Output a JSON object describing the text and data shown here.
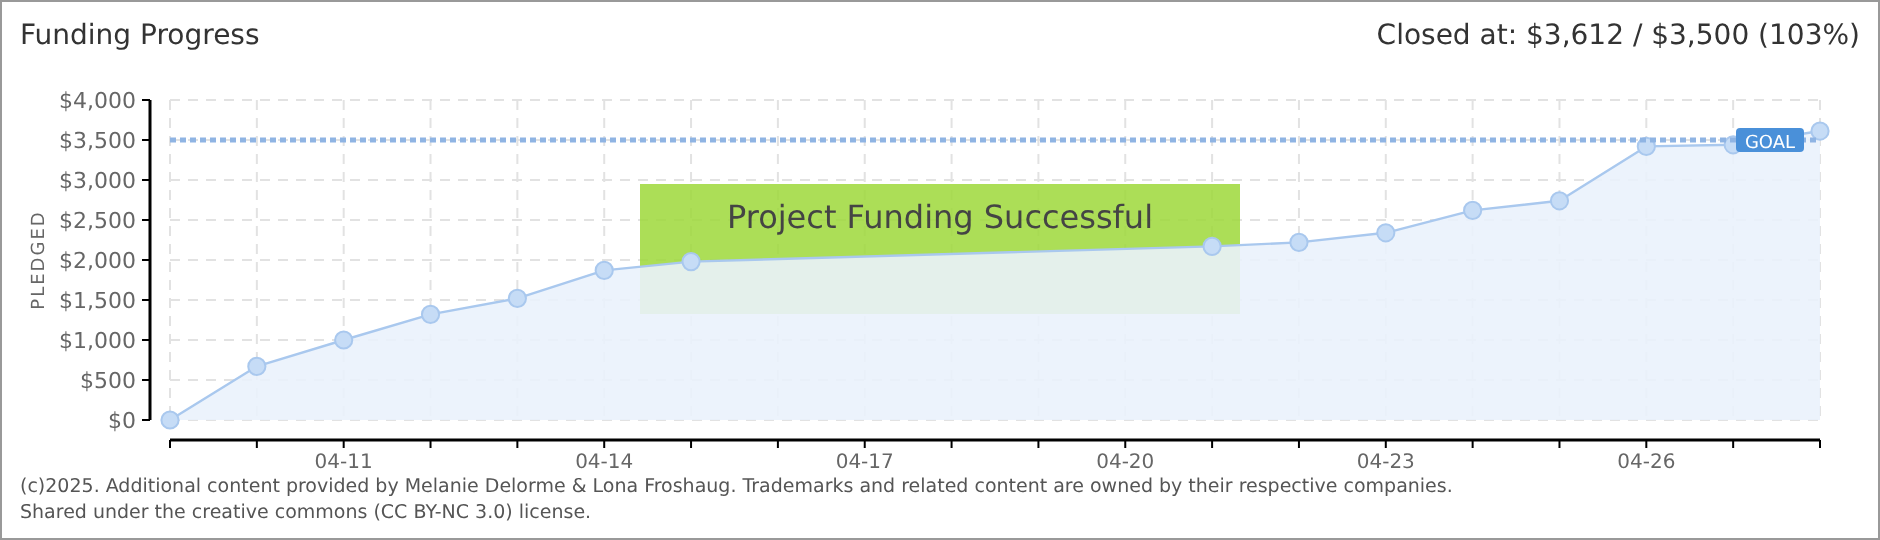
{
  "chart_data": {
    "type": "area",
    "title": "Funding Progress",
    "subtitle": "Closed at: $3,612 / $3,500 (103%)",
    "ylabel": "PLEDGED",
    "series": [
      {
        "color": "#a9c8ee",
        "x": [
          "--04-09",
          "--04-10",
          "--04-11",
          "--04-12",
          "--04-13",
          "--04-14",
          "--04-15",
          "--04-21",
          "--04-22",
          "--04-23",
          "--04-24",
          "--04-25",
          "--04-26",
          "--04-27",
          "--04-28"
        ],
        "values": [
          0,
          670,
          1000,
          1320,
          1520,
          1870,
          1980,
          2170,
          2220,
          2340,
          2620,
          2740,
          3420,
          3440,
          3612
        ]
      }
    ],
    "xlim": [
      "--04-09",
      "--04-28"
    ],
    "xticks": [
      {
        "value": "--04-09",
        "label": null
      },
      {
        "value": "--04-10",
        "label": null
      },
      {
        "value": "--04-11",
        "label": "04-11"
      },
      {
        "value": "--04-12",
        "label": null
      },
      {
        "value": "--04-13",
        "label": null
      },
      {
        "value": "--04-14",
        "label": "04-14"
      },
      {
        "value": "--04-15",
        "label": null
      },
      {
        "value": "--04-16",
        "label": null
      },
      {
        "value": "--04-17",
        "label": "04-17"
      },
      {
        "value": "--04-18",
        "label": null
      },
      {
        "value": "--04-19",
        "label": null
      },
      {
        "value": "--04-20",
        "label": "04-20"
      },
      {
        "value": "--04-21",
        "label": null
      },
      {
        "value": "--04-22",
        "label": null
      },
      {
        "value": "--04-23",
        "label": "04-23"
      },
      {
        "value": "--04-24",
        "label": null
      },
      {
        "value": "--04-25",
        "label": null
      },
      {
        "value": "--04-26",
        "label": "04-26"
      },
      {
        "value": "--04-27",
        "label": null
      },
      {
        "value": "--04-28",
        "label": null
      }
    ],
    "ylim": [
      0,
      4000
    ],
    "yticks": [
      {
        "value": 0,
        "label": "$0"
      },
      {
        "value": 500,
        "label": "$500"
      },
      {
        "value": 1000,
        "label": "$1,000"
      },
      {
        "value": 1500,
        "label": "$1,500"
      },
      {
        "value": 2000,
        "label": "$2,000"
      },
      {
        "value": 2500,
        "label": "$2,500"
      },
      {
        "value": 3000,
        "label": "$3,000"
      },
      {
        "value": 3500,
        "label": "$3,500"
      },
      {
        "value": 4000,
        "label": "$4,000"
      }
    ],
    "grid": true,
    "marker": "circle",
    "ref_lines": [
      {
        "axis": "y",
        "value": 3500,
        "label": "GOAL",
        "color": "#8fb4e3",
        "line_style": "dotted"
      }
    ],
    "annotations": [
      "Project Funding Successful",
      "(c)2025. Additional content provided by Melanie Delorme & Lona Froshaug. Trademarks and related content are owned by their respective companies.",
      "Shared under the creative commons (CC BY-NC 3.0) license."
    ]
  }
}
